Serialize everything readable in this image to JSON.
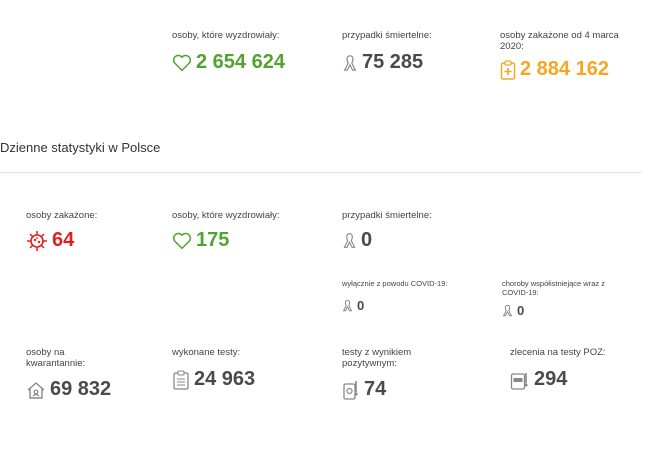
{
  "totals": {
    "recovered": {
      "label": "osoby, które wyzdrowiały:",
      "value": "2 654 624",
      "icon": "heart-icon"
    },
    "deaths": {
      "label": "przypadki śmiertelne:",
      "value": "75 285",
      "icon": "ribbon-icon"
    },
    "infected_since": {
      "label_line1": "osoby zakażone od 4 marca",
      "label_line2": "2020:",
      "value": "2 884 162",
      "icon": "clipboard-plus-icon"
    }
  },
  "daily_title": "Dzienne statystyki w Polsce",
  "daily": {
    "infected": {
      "label": "osoby zakażone:",
      "value": "64",
      "icon": "virus-icon"
    },
    "recovered": {
      "label": "osoby, które wyzdrowiały:",
      "value": "175",
      "icon": "heart-icon"
    },
    "deaths": {
      "label": "przypadki śmiertelne:",
      "value": "0",
      "icon": "ribbon-icon"
    },
    "covid_only": {
      "label": "wyłącznie z powodu COVID-19:",
      "value": "0",
      "icon": "ribbon-icon"
    },
    "comorbid": {
      "label_line1": "choroby współistniejące wraz z",
      "label_line2": "COVID-19:",
      "value": "0",
      "icon": "ribbon-icon"
    },
    "quarantine": {
      "label_line1": "osoby na",
      "label_line2": "kwarantannie:",
      "value": "69 832",
      "icon": "house-icon"
    },
    "tests": {
      "label": "wykonane testy:",
      "value": "24 963",
      "icon": "clipboard-list-icon"
    },
    "positive_tests": {
      "label_line1": "testy z wynikiem",
      "label_line2": "pozytywnym:",
      "value": "74",
      "icon": "test-kit-icon"
    },
    "poz_orders": {
      "label": "zlecenia na testy POZ:",
      "value": "294",
      "icon": "poz-order-icon"
    }
  },
  "colors": {
    "green": "#51a32f",
    "orange": "#f5a623",
    "red": "#e02020",
    "gray": "#4a4a4a"
  }
}
